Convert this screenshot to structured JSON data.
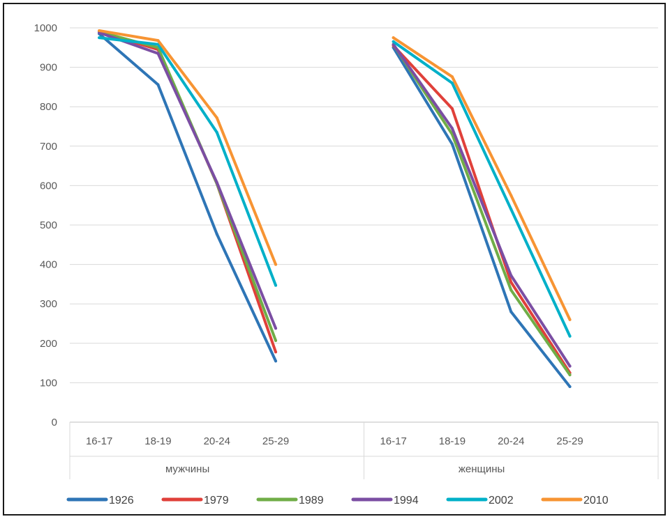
{
  "chart_data": {
    "type": "line",
    "title": "",
    "xlabel": "",
    "ylabel": "",
    "ylim": [
      0,
      1000
    ],
    "y_ticks": [
      0,
      100,
      200,
      300,
      400,
      500,
      600,
      700,
      800,
      900,
      1000
    ],
    "grid": true,
    "legend_position": "bottom",
    "groups": [
      {
        "name": "мужчины",
        "categories": [
          "16-17",
          "18-19",
          "20-24",
          "25-29"
        ]
      },
      {
        "name": "женщины",
        "categories": [
          "16-17",
          "18-19",
          "20-24",
          "25-29"
        ]
      }
    ],
    "series": [
      {
        "name": "1926",
        "color": "#2e75b6",
        "values": [
          [
            985,
            856,
            477,
            155
          ],
          [
            950,
            705,
            280,
            90
          ]
        ]
      },
      {
        "name": "1979",
        "color": "#e0403a",
        "values": [
          [
            990,
            945,
            605,
            178
          ],
          [
            955,
            795,
            355,
            125
          ]
        ]
      },
      {
        "name": "1989",
        "color": "#70ad47",
        "values": [
          [
            990,
            950,
            605,
            207
          ],
          [
            958,
            730,
            335,
            120
          ]
        ]
      },
      {
        "name": "1994",
        "color": "#7b4ea3",
        "values": [
          [
            988,
            935,
            608,
            238
          ],
          [
            958,
            745,
            372,
            142
          ]
        ]
      },
      {
        "name": "2002",
        "color": "#00b0c8",
        "values": [
          [
            975,
            958,
            735,
            347
          ],
          [
            965,
            860,
            540,
            218
          ]
        ]
      },
      {
        "name": "2010",
        "color": "#f79433",
        "values": [
          [
            993,
            968,
            772,
            400
          ],
          [
            975,
            876,
            575,
            260
          ]
        ]
      }
    ]
  }
}
